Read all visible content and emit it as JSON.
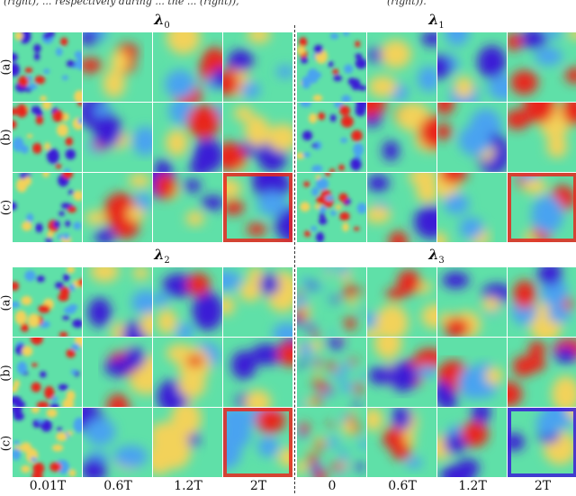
{
  "caption_fragment": {
    "left": "(right),  ...  respectively during ... the ... (right)),",
    "right": "(right))."
  },
  "groups": [
    {
      "title_symbol": "λ",
      "title_sub": "0"
    },
    {
      "title_symbol": "λ",
      "title_sub": "1"
    },
    {
      "title_symbol": "λ",
      "title_sub": "2"
    },
    {
      "title_symbol": "λ",
      "title_sub": "3"
    }
  ],
  "row_labels": [
    "(a)",
    "(b)",
    "(c)"
  ],
  "column_labels_left": [
    "0.01T",
    "0.6T",
    "1.2T",
    "2T"
  ],
  "column_labels_right": [
    "0",
    "0.6T",
    "1.2T",
    "2T"
  ],
  "colormap": {
    "name": "jet",
    "low": "#3b1fd6",
    "mid_low": "#4aa3f0",
    "mid": "#5fe0a8",
    "mid_high": "#f2d25a",
    "high": "#e8281e"
  }
}
